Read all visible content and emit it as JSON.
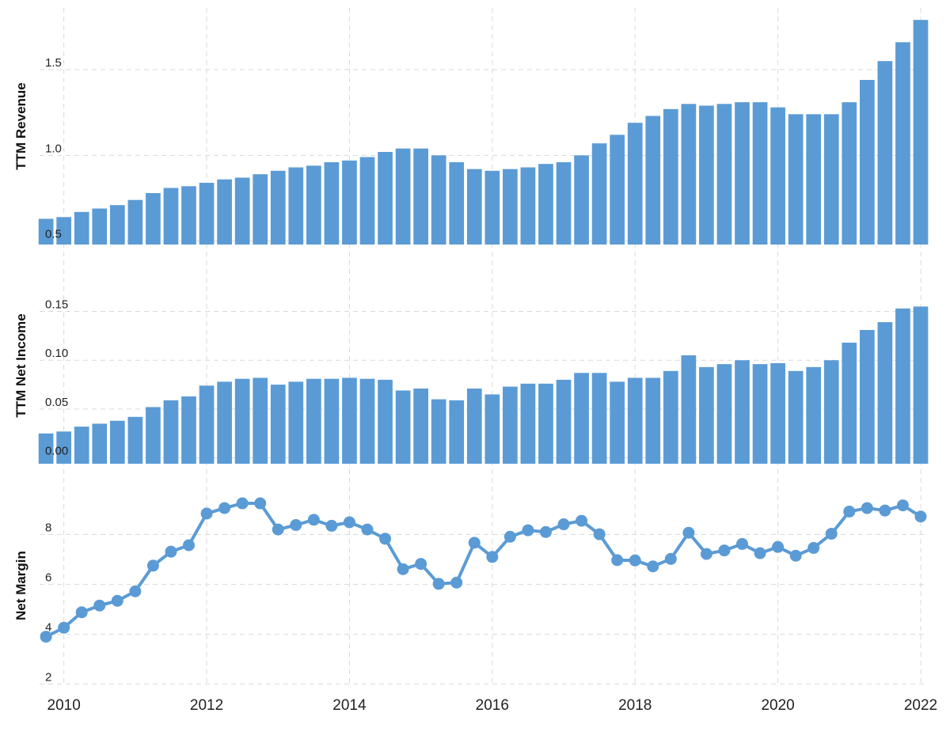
{
  "colors": {
    "series": "#5b9bd5",
    "grid": "#d9d9d9",
    "text": "#222222",
    "background": "#ffffff"
  },
  "chart_data": [
    {
      "type": "bar",
      "ylabel": "TTM Revenue",
      "ylim": [
        0.48,
        1.86
      ],
      "yticks": [
        0.5,
        1.0,
        1.5
      ],
      "ytick_labels": [
        "0.5",
        "1.0",
        "1.5"
      ],
      "grid": true,
      "x": [
        2009.75,
        2010.0,
        2010.25,
        2010.5,
        2010.75,
        2011.0,
        2011.25,
        2011.5,
        2011.75,
        2012.0,
        2012.25,
        2012.5,
        2012.75,
        2013.0,
        2013.25,
        2013.5,
        2013.75,
        2014.0,
        2014.25,
        2014.5,
        2014.75,
        2015.0,
        2015.25,
        2015.5,
        2015.75,
        2016.0,
        2016.25,
        2016.5,
        2016.75,
        2017.0,
        2017.25,
        2017.5,
        2017.75,
        2018.0,
        2018.25,
        2018.5,
        2018.75,
        2019.0,
        2019.25,
        2019.5,
        2019.75,
        2020.0,
        2020.25,
        2020.5,
        2020.75,
        2021.0,
        2021.25,
        2021.5,
        2021.75,
        2022.0
      ],
      "values": [
        0.63,
        0.64,
        0.67,
        0.69,
        0.71,
        0.74,
        0.78,
        0.81,
        0.82,
        0.84,
        0.86,
        0.87,
        0.89,
        0.91,
        0.93,
        0.94,
        0.96,
        0.97,
        0.99,
        1.02,
        1.04,
        1.04,
        1.0,
        0.96,
        0.92,
        0.91,
        0.92,
        0.93,
        0.95,
        0.96,
        1.0,
        1.07,
        1.12,
        1.19,
        1.23,
        1.27,
        1.3,
        1.29,
        1.3,
        1.31,
        1.31,
        1.28,
        1.24,
        1.24,
        1.24,
        1.31,
        1.44,
        1.55,
        1.66,
        1.79
      ]
    },
    {
      "type": "bar",
      "ylabel": "TTM Net Income",
      "ylim": [
        -0.006,
        0.195
      ],
      "yticks": [
        0.0,
        0.05,
        0.1,
        0.15
      ],
      "ytick_labels": [
        "0.00",
        "0.05",
        "0.10",
        "0.15"
      ],
      "grid": true,
      "x": [
        2009.75,
        2010.0,
        2010.25,
        2010.5,
        2010.75,
        2011.0,
        2011.25,
        2011.5,
        2011.75,
        2012.0,
        2012.25,
        2012.5,
        2012.75,
        2013.0,
        2013.25,
        2013.5,
        2013.75,
        2014.0,
        2014.25,
        2014.5,
        2014.75,
        2015.0,
        2015.25,
        2015.5,
        2015.75,
        2016.0,
        2016.25,
        2016.5,
        2016.75,
        2017.0,
        2017.25,
        2017.5,
        2017.75,
        2018.0,
        2018.25,
        2018.5,
        2018.75,
        2019.0,
        2019.25,
        2019.5,
        2019.75,
        2020.0,
        2020.25,
        2020.5,
        2020.75,
        2021.0,
        2021.25,
        2021.5,
        2021.75,
        2022.0
      ],
      "values": [
        0.025,
        0.027,
        0.032,
        0.035,
        0.038,
        0.042,
        0.052,
        0.059,
        0.063,
        0.074,
        0.078,
        0.081,
        0.082,
        0.075,
        0.078,
        0.081,
        0.081,
        0.082,
        0.081,
        0.08,
        0.069,
        0.071,
        0.06,
        0.059,
        0.071,
        0.065,
        0.073,
        0.076,
        0.076,
        0.08,
        0.087,
        0.087,
        0.078,
        0.082,
        0.082,
        0.089,
        0.105,
        0.093,
        0.096,
        0.1,
        0.096,
        0.097,
        0.089,
        0.093,
        0.1,
        0.118,
        0.131,
        0.139,
        0.153,
        0.155
      ]
    },
    {
      "type": "line",
      "ylabel": "Net Margin",
      "ylim": [
        1.95,
        9.95
      ],
      "yticks": [
        2,
        4,
        6,
        8
      ],
      "ytick_labels": [
        "2",
        "4",
        "6",
        "8"
      ],
      "grid": true,
      "x": [
        2009.75,
        2010.0,
        2010.25,
        2010.5,
        2010.75,
        2011.0,
        2011.25,
        2011.5,
        2011.75,
        2012.0,
        2012.25,
        2012.5,
        2012.75,
        2013.0,
        2013.25,
        2013.5,
        2013.75,
        2014.0,
        2014.25,
        2014.5,
        2014.75,
        2015.0,
        2015.25,
        2015.5,
        2015.75,
        2016.0,
        2016.25,
        2016.5,
        2016.75,
        2017.0,
        2017.25,
        2017.5,
        2017.75,
        2018.0,
        2018.25,
        2018.5,
        2018.75,
        2019.0,
        2019.25,
        2019.5,
        2019.75,
        2020.0,
        2020.25,
        2020.5,
        2020.75,
        2021.0,
        2021.25,
        2021.5,
        2021.75,
        2022.0
      ],
      "values": [
        3.9,
        4.26,
        4.88,
        5.15,
        5.34,
        5.72,
        6.75,
        7.31,
        7.57,
        8.84,
        9.06,
        9.25,
        9.25,
        8.2,
        8.38,
        8.59,
        8.35,
        8.49,
        8.2,
        7.83,
        6.61,
        6.82,
        6.02,
        6.07,
        7.67,
        7.1,
        7.91,
        8.17,
        8.1,
        8.41,
        8.55,
        8.01,
        6.97,
        6.96,
        6.72,
        7.02,
        8.07,
        7.22,
        7.36,
        7.62,
        7.25,
        7.5,
        7.15,
        7.46,
        8.03,
        8.92,
        9.06,
        8.96,
        9.17,
        8.72
      ]
    }
  ],
  "x_axis": {
    "ticks": [
      2010,
      2012,
      2014,
      2016,
      2018,
      2020,
      2022
    ],
    "tick_labels": [
      "2010",
      "2012",
      "2014",
      "2016",
      "2018",
      "2020",
      "2022"
    ],
    "xlim": [
      2009.66,
      2022.1
    ]
  }
}
